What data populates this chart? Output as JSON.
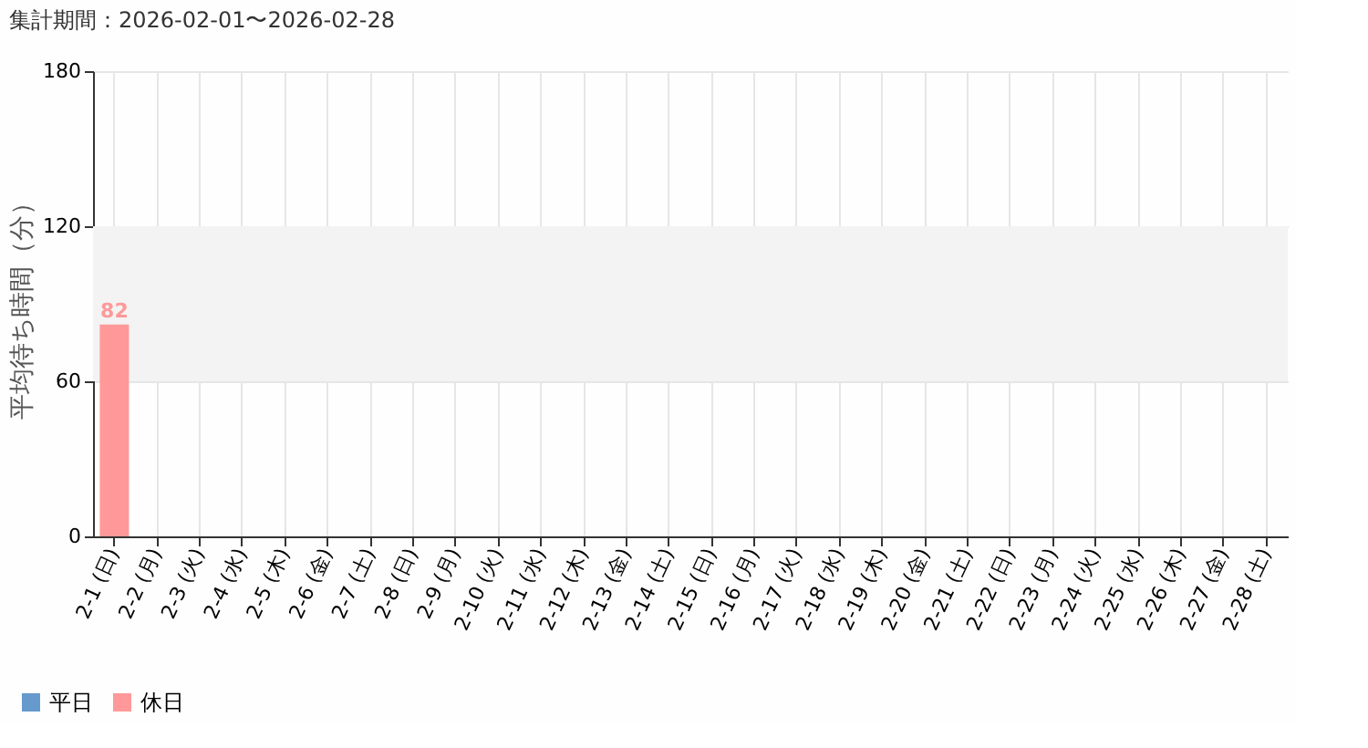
{
  "chart_data": {
    "type": "bar",
    "title": "集計期間：2026-02-01〜2026-02-28",
    "ylabel": "平均待ち時間（分）",
    "categories": [
      "2-1 (日)",
      "2-2 (月)",
      "2-3 (火)",
      "2-4 (水)",
      "2-5 (木)",
      "2-6 (金)",
      "2-7 (土)",
      "2-8 (日)",
      "2-9 (月)",
      "2-10 (火)",
      "2-11 (水)",
      "2-12 (木)",
      "2-13 (金)",
      "2-14 (土)",
      "2-15 (日)",
      "2-16 (月)",
      "2-17 (火)",
      "2-18 (水)",
      "2-19 (木)",
      "2-20 (金)",
      "2-21 (土)",
      "2-22 (日)",
      "2-23 (月)",
      "2-24 (火)",
      "2-25 (水)",
      "2-26 (木)",
      "2-27 (金)",
      "2-28 (土)"
    ],
    "series": [
      {
        "name": "平日",
        "color": "#6699cc",
        "values": [
          null,
          null,
          null,
          null,
          null,
          null,
          null,
          null,
          null,
          null,
          null,
          null,
          null,
          null,
          null,
          null,
          null,
          null,
          null,
          null,
          null,
          null,
          null,
          null,
          null,
          null,
          null,
          null
        ]
      },
      {
        "name": "休日",
        "color": "#ff9999",
        "values": [
          82,
          null,
          null,
          null,
          null,
          null,
          null,
          null,
          null,
          null,
          null,
          null,
          null,
          null,
          null,
          null,
          null,
          null,
          null,
          null,
          null,
          null,
          null,
          null,
          null,
          null,
          null,
          null
        ]
      }
    ],
    "ylim": [
      0,
      180
    ],
    "yticks": [
      0,
      60,
      120,
      180
    ],
    "bands": [
      {
        "axis": "y",
        "from": 60,
        "to": 120,
        "color": "#f3f3f3"
      }
    ],
    "data_labels": true,
    "grid": true,
    "legend": "bottom left"
  }
}
